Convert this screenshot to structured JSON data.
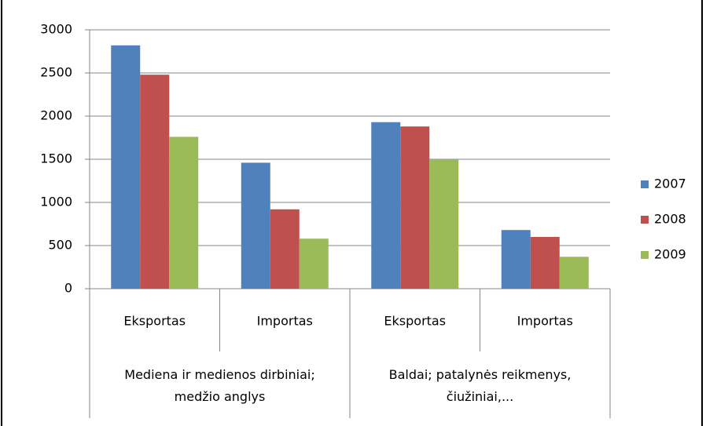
{
  "chart_data": {
    "type": "bar",
    "categories": [
      "Eksportas",
      "Importas",
      "Eksportas",
      "Importas"
    ],
    "groups": [
      "Mediena ir medienos dirbiniai;\nmedžio anglys",
      "Baldai; patalynės reikmenys,\nčiužiniai,..."
    ],
    "series": [
      {
        "name": "2007",
        "color": "#4f81bd",
        "values": [
          2820,
          1460,
          1930,
          680
        ]
      },
      {
        "name": "2008",
        "color": "#c0504d",
        "values": [
          2480,
          920,
          1880,
          600
        ]
      },
      {
        "name": "2009",
        "color": "#9bbb59",
        "values": [
          1760,
          580,
          1500,
          370
        ]
      }
    ],
    "ylim": [
      0,
      3000
    ],
    "yticks": [
      0,
      500,
      1000,
      1500,
      2000,
      2500,
      3000
    ],
    "grid": true,
    "legend": "right"
  }
}
